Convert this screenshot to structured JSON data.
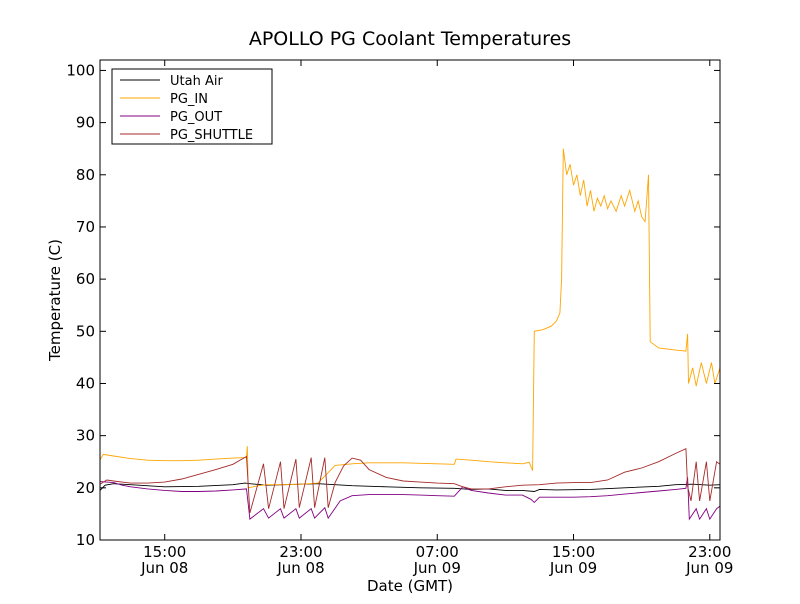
{
  "chart_data": {
    "type": "line",
    "title": "APOLLO PG Coolant Temperatures",
    "xlabel": "Date (GMT)",
    "ylabel": "Temperature (C)",
    "ylim": [
      10,
      102
    ],
    "xlim_hours": [
      11.2,
      47.6
    ],
    "yticks": [
      10,
      20,
      30,
      40,
      50,
      60,
      70,
      80,
      90,
      100
    ],
    "xticks": [
      {
        "h": 15,
        "line1": "15:00",
        "line2": "Jun 08"
      },
      {
        "h": 23,
        "line1": "23:00",
        "line2": "Jun 08"
      },
      {
        "h": 31,
        "line1": "07:00",
        "line2": "Jun 09"
      },
      {
        "h": 39,
        "line1": "15:00",
        "line2": "Jun 09"
      },
      {
        "h": 47,
        "line1": "23:00",
        "line2": "Jun 09"
      }
    ],
    "legend_position": "top-left",
    "series": [
      {
        "name": "Utah Air",
        "color": "#000000",
        "points": [
          [
            11.2,
            19.5
          ],
          [
            11.5,
            20.5
          ],
          [
            12,
            20.8
          ],
          [
            13,
            20.6
          ],
          [
            15,
            20.2
          ],
          [
            17,
            20.3
          ],
          [
            19,
            20.6
          ],
          [
            19.7,
            20.9
          ],
          [
            20,
            20.8
          ],
          [
            21,
            20.5
          ],
          [
            22,
            20.6
          ],
          [
            23,
            20.7
          ],
          [
            24,
            20.8
          ],
          [
            25,
            20.6
          ],
          [
            26,
            20.4
          ],
          [
            28,
            20.2
          ],
          [
            30,
            20
          ],
          [
            32,
            19.9
          ],
          [
            33,
            19.7
          ],
          [
            34,
            19.8
          ],
          [
            35,
            19.5
          ],
          [
            36,
            19.5
          ],
          [
            36.7,
            19.3
          ],
          [
            37,
            19.7
          ],
          [
            38,
            19.6
          ],
          [
            40,
            19.7
          ],
          [
            42,
            20
          ],
          [
            44,
            20.3
          ],
          [
            45,
            20.6
          ],
          [
            46,
            20.7
          ],
          [
            47,
            20.5
          ],
          [
            47.6,
            20.6
          ]
        ]
      },
      {
        "name": "PG_IN",
        "color": "#ffa500",
        "points": [
          [
            11.2,
            25.4
          ],
          [
            11.4,
            26.4
          ],
          [
            12,
            26.1
          ],
          [
            13,
            25.6
          ],
          [
            14,
            25.3
          ],
          [
            15,
            25.2
          ],
          [
            16,
            25.2
          ],
          [
            17,
            25.3
          ],
          [
            18,
            25.5
          ],
          [
            19,
            25.7
          ],
          [
            19.8,
            25.8
          ],
          [
            19.85,
            28
          ],
          [
            19.9,
            20
          ],
          [
            20.5,
            20.4
          ],
          [
            21,
            20.6
          ],
          [
            22,
            20.6
          ],
          [
            23,
            20.7
          ],
          [
            24,
            20.9
          ],
          [
            25,
            24.3
          ],
          [
            26,
            24.6
          ],
          [
            27,
            24.8
          ],
          [
            28,
            24.8
          ],
          [
            29,
            24.8
          ],
          [
            30,
            24.7
          ],
          [
            31,
            24.6
          ],
          [
            32,
            24.5
          ],
          [
            32.1,
            25.5
          ],
          [
            33,
            25.3
          ],
          [
            34,
            25
          ],
          [
            35,
            24.8
          ],
          [
            36,
            24.6
          ],
          [
            36.4,
            24.9
          ],
          [
            36.6,
            23.3
          ],
          [
            36.7,
            50
          ],
          [
            37.2,
            50.3
          ],
          [
            37.7,
            51
          ],
          [
            38,
            52
          ],
          [
            38.2,
            53.5
          ],
          [
            38.3,
            60
          ],
          [
            38.4,
            85
          ],
          [
            38.6,
            80
          ],
          [
            38.8,
            82
          ],
          [
            39,
            78
          ],
          [
            39.2,
            80
          ],
          [
            39.4,
            76
          ],
          [
            39.6,
            79
          ],
          [
            39.8,
            74
          ],
          [
            40,
            77
          ],
          [
            40.2,
            73
          ],
          [
            40.4,
            75.5
          ],
          [
            40.6,
            74
          ],
          [
            40.8,
            76
          ],
          [
            41,
            73.5
          ],
          [
            41.2,
            75
          ],
          [
            41.5,
            73
          ],
          [
            41.8,
            76
          ],
          [
            42,
            74
          ],
          [
            42.3,
            77
          ],
          [
            42.6,
            73
          ],
          [
            42.8,
            75
          ],
          [
            43,
            72
          ],
          [
            43.2,
            71
          ],
          [
            43.4,
            80
          ],
          [
            43.5,
            48
          ],
          [
            44,
            46.8
          ],
          [
            45,
            46.4
          ],
          [
            45.6,
            46.2
          ],
          [
            45.7,
            49.5
          ],
          [
            45.75,
            40
          ],
          [
            46,
            43
          ],
          [
            46.2,
            39.5
          ],
          [
            46.5,
            44
          ],
          [
            46.8,
            40
          ],
          [
            47.1,
            44
          ],
          [
            47.3,
            40
          ],
          [
            47.6,
            43
          ]
        ]
      },
      {
        "name": "PG_OUT",
        "color": "#800080",
        "points": [
          [
            11.2,
            21.2
          ],
          [
            12,
            21
          ],
          [
            12.5,
            20.5
          ],
          [
            13,
            20.2
          ],
          [
            14,
            19.8
          ],
          [
            15,
            19.5
          ],
          [
            16,
            19.3
          ],
          [
            17,
            19.3
          ],
          [
            18,
            19.4
          ],
          [
            19,
            19.6
          ],
          [
            19.8,
            19.8
          ],
          [
            20,
            14
          ],
          [
            20.8,
            16
          ],
          [
            21.1,
            14.2
          ],
          [
            21.8,
            16
          ],
          [
            22,
            14.2
          ],
          [
            22.7,
            16
          ],
          [
            22.9,
            14.2
          ],
          [
            23.6,
            16
          ],
          [
            23.8,
            14.2
          ],
          [
            24.4,
            16.2
          ],
          [
            24.6,
            14.2
          ],
          [
            25.3,
            17.5
          ],
          [
            26,
            18.5
          ],
          [
            27,
            18.7
          ],
          [
            28,
            18.7
          ],
          [
            29,
            18.7
          ],
          [
            30,
            18.6
          ],
          [
            31,
            18.5
          ],
          [
            32,
            18.4
          ],
          [
            32.5,
            20.2
          ],
          [
            33,
            19.5
          ],
          [
            34,
            19
          ],
          [
            35,
            18.6
          ],
          [
            36,
            18.6
          ],
          [
            36.5,
            17.8
          ],
          [
            36.7,
            17.2
          ],
          [
            37,
            18.2
          ],
          [
            38,
            18.2
          ],
          [
            39,
            18.2
          ],
          [
            40,
            18.3
          ],
          [
            41,
            18.5
          ],
          [
            42,
            18.8
          ],
          [
            43,
            19.1
          ],
          [
            44,
            19.4
          ],
          [
            45,
            19.7
          ],
          [
            45.6,
            19.9
          ],
          [
            45.7,
            22
          ],
          [
            45.8,
            14
          ],
          [
            46.2,
            16
          ],
          [
            46.4,
            14
          ],
          [
            46.8,
            16
          ],
          [
            47,
            14
          ],
          [
            47.4,
            16
          ],
          [
            47.6,
            16.5
          ]
        ]
      },
      {
        "name": "PG_SHUTTLE",
        "color": "#a52a2a",
        "points": [
          [
            11.2,
            20.7
          ],
          [
            11.6,
            21.5
          ],
          [
            12,
            21.3
          ],
          [
            13,
            20.9
          ],
          [
            14,
            20.9
          ],
          [
            15,
            21.1
          ],
          [
            16,
            21.7
          ],
          [
            17,
            22.6
          ],
          [
            18,
            23.5
          ],
          [
            19,
            24.5
          ],
          [
            19.8,
            26
          ],
          [
            20,
            15.2
          ],
          [
            20.8,
            24.6
          ],
          [
            21.1,
            16
          ],
          [
            21.8,
            25
          ],
          [
            22,
            16
          ],
          [
            22.7,
            25.5
          ],
          [
            22.9,
            16.2
          ],
          [
            23.6,
            25.8
          ],
          [
            23.8,
            16.2
          ],
          [
            24.4,
            25.8
          ],
          [
            24.6,
            16.2
          ],
          [
            25,
            21
          ],
          [
            25.5,
            24.2
          ],
          [
            26,
            25.7
          ],
          [
            26.5,
            25.3
          ],
          [
            27,
            23.5
          ],
          [
            28,
            22
          ],
          [
            29,
            21.3
          ],
          [
            30,
            21.1
          ],
          [
            31,
            20.9
          ],
          [
            32,
            20.8
          ],
          [
            32.5,
            20.2
          ],
          [
            33,
            19.8
          ],
          [
            34,
            19.8
          ],
          [
            35,
            20.2
          ],
          [
            36,
            20.5
          ],
          [
            37,
            20.6
          ],
          [
            38,
            20.9
          ],
          [
            39,
            21
          ],
          [
            40,
            21
          ],
          [
            41,
            21.5
          ],
          [
            42,
            23
          ],
          [
            43,
            23.8
          ],
          [
            44,
            25
          ],
          [
            45,
            26.6
          ],
          [
            45.6,
            27.5
          ],
          [
            45.7,
            20.3
          ],
          [
            45.9,
            17.5
          ],
          [
            46.2,
            25
          ],
          [
            46.4,
            17.5
          ],
          [
            46.8,
            25
          ],
          [
            47,
            17.5
          ],
          [
            47.4,
            25
          ],
          [
            47.6,
            24.5
          ]
        ]
      }
    ]
  }
}
